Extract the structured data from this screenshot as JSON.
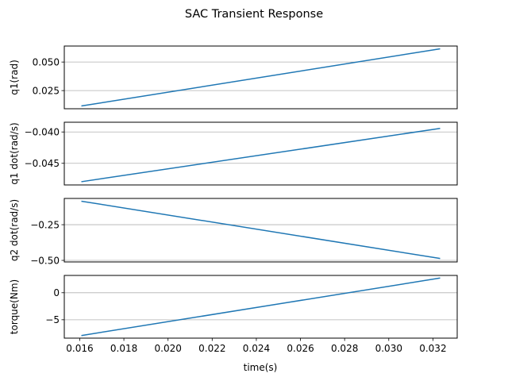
{
  "chart_data": {
    "title": "SAC Transient Response",
    "xlabel": "time(s)",
    "xlim": [
      0.0153,
      0.0331
    ],
    "xticks": [
      0.016,
      0.018,
      0.02,
      0.022,
      0.024,
      0.026,
      0.028,
      0.03,
      0.032
    ],
    "xtick_labels": [
      "0.016",
      "0.018",
      "0.020",
      "0.022",
      "0.024",
      "0.026",
      "0.028",
      "0.030",
      "0.032"
    ],
    "grid": "y-only",
    "subplots": [
      {
        "type": "line",
        "ylabel": "q1(rad)",
        "ylim": [
          0.0091,
          0.064
        ],
        "yticks": [
          0.025,
          0.05
        ],
        "ytick_labels": [
          "0.025",
          "0.050"
        ],
        "series": [
          {
            "color": "#1f77b4",
            "x": [
              0.0161,
              0.0323
            ],
            "values": [
              0.0116,
              0.0615
            ]
          }
        ]
      },
      {
        "type": "line",
        "ylabel": "q1 dot(rad/s)",
        "ylim": [
          -0.04845,
          -0.03845
        ],
        "yticks": [
          -0.045,
          -0.04
        ],
        "ytick_labels": [
          "−0.045",
          "−0.040"
        ],
        "series": [
          {
            "color": "#1f77b4",
            "x": [
              0.0161,
              0.0323
            ],
            "values": [
              -0.04792,
              -0.03945
            ]
          }
        ]
      },
      {
        "type": "line",
        "ylabel": "q2 dot(rad/s)",
        "ylim": [
          -0.511,
          -0.066
        ],
        "yticks": [
          -0.25,
          -0.5
        ],
        "ytick_labels": [
          "−0.25",
          "−0.50"
        ],
        "series": [
          {
            "color": "#1f77b4",
            "x": [
              0.0161,
              0.0323
            ],
            "values": [
              -0.086,
              -0.486
            ]
          }
        ]
      },
      {
        "type": "line",
        "ylabel": "torque(Nm)",
        "ylim": [
          -8.4,
          3.2
        ],
        "yticks": [
          0,
          -5
        ],
        "ytick_labels": [
          "0",
          "−5"
        ],
        "series": [
          {
            "color": "#1f77b4",
            "x": [
              0.0161,
              0.0323
            ],
            "values": [
              -7.9,
              2.7
            ]
          }
        ]
      }
    ]
  }
}
